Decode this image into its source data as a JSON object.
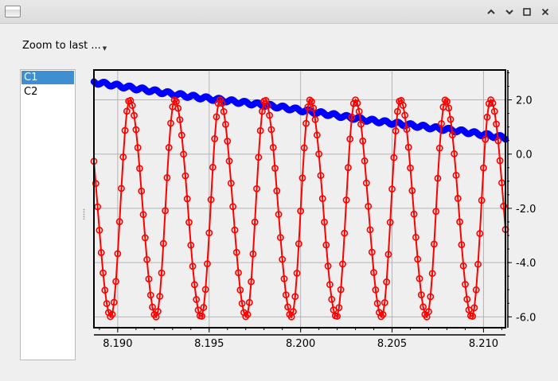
{
  "window": {
    "title": "",
    "controls": [
      "minimize",
      "maximize",
      "restore",
      "close"
    ]
  },
  "toolbar": {
    "zoom_combo_label": "Zoom to last ..."
  },
  "channels": {
    "items": [
      {
        "label": "C1",
        "selected": true
      },
      {
        "label": "C2",
        "selected": false
      }
    ]
  },
  "colors": {
    "series_c1": "#ff0000",
    "series_c2": "#0000ff",
    "selection": "#3d8fd1"
  },
  "chart_data": {
    "type": "scatter",
    "title": "",
    "xlabel": "",
    "ylabel": "",
    "xlim": [
      8.1887,
      8.2112
    ],
    "ylim": [
      -6.4,
      3.1
    ],
    "grid": true,
    "legend": "none",
    "y_axis_side": "right",
    "x_ticks": [
      8.19,
      8.195,
      8.2,
      8.205,
      8.21
    ],
    "x_tick_labels": [
      "8.190",
      "8.195",
      "8.200",
      "8.205",
      "8.210"
    ],
    "y_ticks": [
      2.0,
      0.0,
      -2.0,
      -4.0,
      -6.0
    ],
    "y_tick_labels": [
      "2.0",
      "0.0",
      "-2.0",
      "-4.0",
      "-6.0"
    ],
    "series": [
      {
        "id": "c1",
        "style": "line-with-circle-markers",
        "description_points": {
          "period": 0.002467,
          "min_y": -6.0,
          "max_y": 2.0,
          "first_min_x": 8.18963,
          "first_max_x": 8.19065,
          "x_start": 8.1887,
          "x_end": 8.2112,
          "sample_step": 0.0001
        }
      },
      {
        "id": "c2",
        "style": "dense-markers",
        "x": [
          8.1887,
          8.1912,
          8.1937,
          8.1962,
          8.1987,
          8.2012,
          8.2037,
          8.2062,
          8.2087,
          8.2112
        ],
        "values": [
          2.65,
          2.4,
          2.15,
          1.95,
          1.75,
          1.5,
          1.25,
          1.05,
          0.85,
          0.6
        ]
      }
    ]
  }
}
